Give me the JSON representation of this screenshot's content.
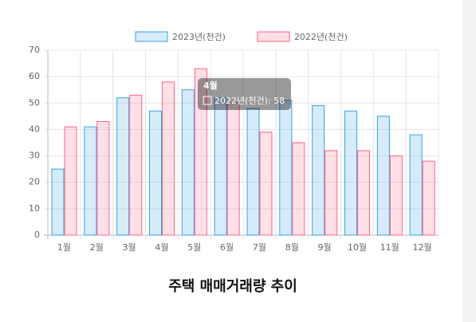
{
  "chart_data": {
    "type": "bar",
    "title": "주택 매매거래량 추이",
    "categories": [
      "1월",
      "2월",
      "3월",
      "4월",
      "5월",
      "6월",
      "7월",
      "8월",
      "9월",
      "10월",
      "11월",
      "12월"
    ],
    "series": [
      {
        "name": "2023년(천건)",
        "color": "#36a2eb",
        "values": [
          25,
          41,
          52,
          47,
          55,
          52,
          48,
          51,
          49,
          47,
          45,
          38
        ]
      },
      {
        "name": "2022년(천건)",
        "color": "#ff6384",
        "values": [
          41,
          43,
          53,
          58,
          63,
          50,
          39,
          35,
          32,
          32,
          30,
          28
        ]
      }
    ],
    "ylim": [
      0,
      70
    ],
    "yticks": [
      0,
      10,
      20,
      30,
      40,
      50,
      60,
      70
    ],
    "grid": true,
    "legend": "top",
    "tooltip": {
      "title": "4월",
      "label": "2022년(천건): 58"
    }
  }
}
